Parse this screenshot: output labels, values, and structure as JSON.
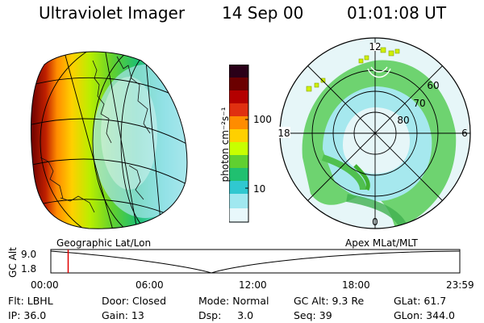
{
  "header": {
    "instrument": "Ultraviolet Imager",
    "date": "14 Sep 00",
    "time": "01:01:08 UT"
  },
  "left_panel": {
    "label": "Geographic Lat/Lon"
  },
  "right_panel": {
    "label": "Apex MLat/MLT",
    "mlt_labels": {
      "top": "12",
      "left": "18",
      "right": "6",
      "bottom": "0"
    },
    "lat_labels": [
      "60",
      "70",
      "80"
    ]
  },
  "colorbar": {
    "unit_label": "photon cm⁻²s⁻¹",
    "ticks": [
      "100",
      "10"
    ],
    "colors": [
      "#2a0018",
      "#6b0000",
      "#b40000",
      "#e03010",
      "#ff8c00",
      "#ffd000",
      "#c8ff00",
      "#60d030",
      "#20c070",
      "#30c8d0",
      "#a0e8f0",
      "#e8f8fb"
    ]
  },
  "timeline": {
    "ylabel": "GC Alt",
    "ymax": "9.0",
    "ymin": "1.8",
    "xticks": [
      "00:00",
      "06:00",
      "12:00",
      "18:00",
      "23:59"
    ],
    "current_time_fraction": 0.0424
  },
  "info": {
    "row1": [
      "Flt: LBHL",
      "Door: Closed",
      "Mode: Normal",
      "GC Alt: 9.3 Re",
      "GLat: 61.7"
    ],
    "row2": [
      "IP: 36.0",
      "Gain: 13",
      "Dsp:     3.0",
      "Seq: 39",
      "GLon: 344.0"
    ]
  }
}
